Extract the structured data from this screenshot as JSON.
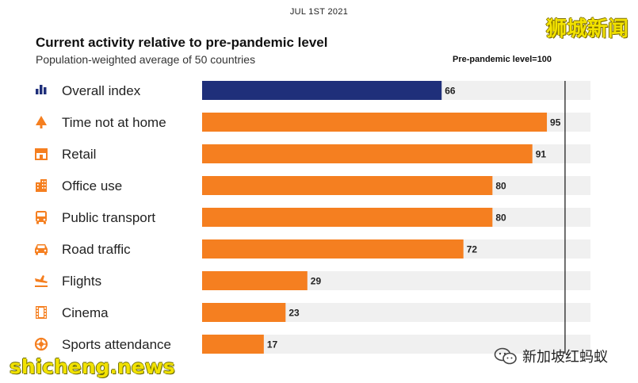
{
  "date": "JUL 1ST 2021",
  "watermarks": {
    "top_right": "狮城新闻",
    "bottom_left": "shicheng.news",
    "wechat_account": "新加坡红蚂蚁"
  },
  "chart_data": {
    "type": "bar",
    "orientation": "horizontal",
    "title": "Current activity relative to pre-pandemic level",
    "subtitle": "Population-weighted average of 50 countries",
    "reference_note": "Pre-pandemic level=100",
    "reference_value": 100,
    "xlim": [
      0,
      107
    ],
    "categories": [
      "Overall index",
      "Time not at home",
      "Retail",
      "Office use",
      "Public transport",
      "Road traffic",
      "Flights",
      "Cinema",
      "Sports attendance"
    ],
    "values": [
      66,
      95,
      91,
      80,
      80,
      72,
      29,
      23,
      17
    ],
    "icons": [
      "bar-chart-icon",
      "tree-icon",
      "shop-icon",
      "office-building-icon",
      "bus-icon",
      "car-icon",
      "plane-icon",
      "film-icon",
      "ball-icon"
    ],
    "colors": {
      "overall": "#1f2f7a",
      "others": "#f57f20",
      "track": "#f0f0f0",
      "icon": "#f57f20",
      "overall_icon": "#1f2f7a",
      "reference_line": "#111111"
    }
  }
}
